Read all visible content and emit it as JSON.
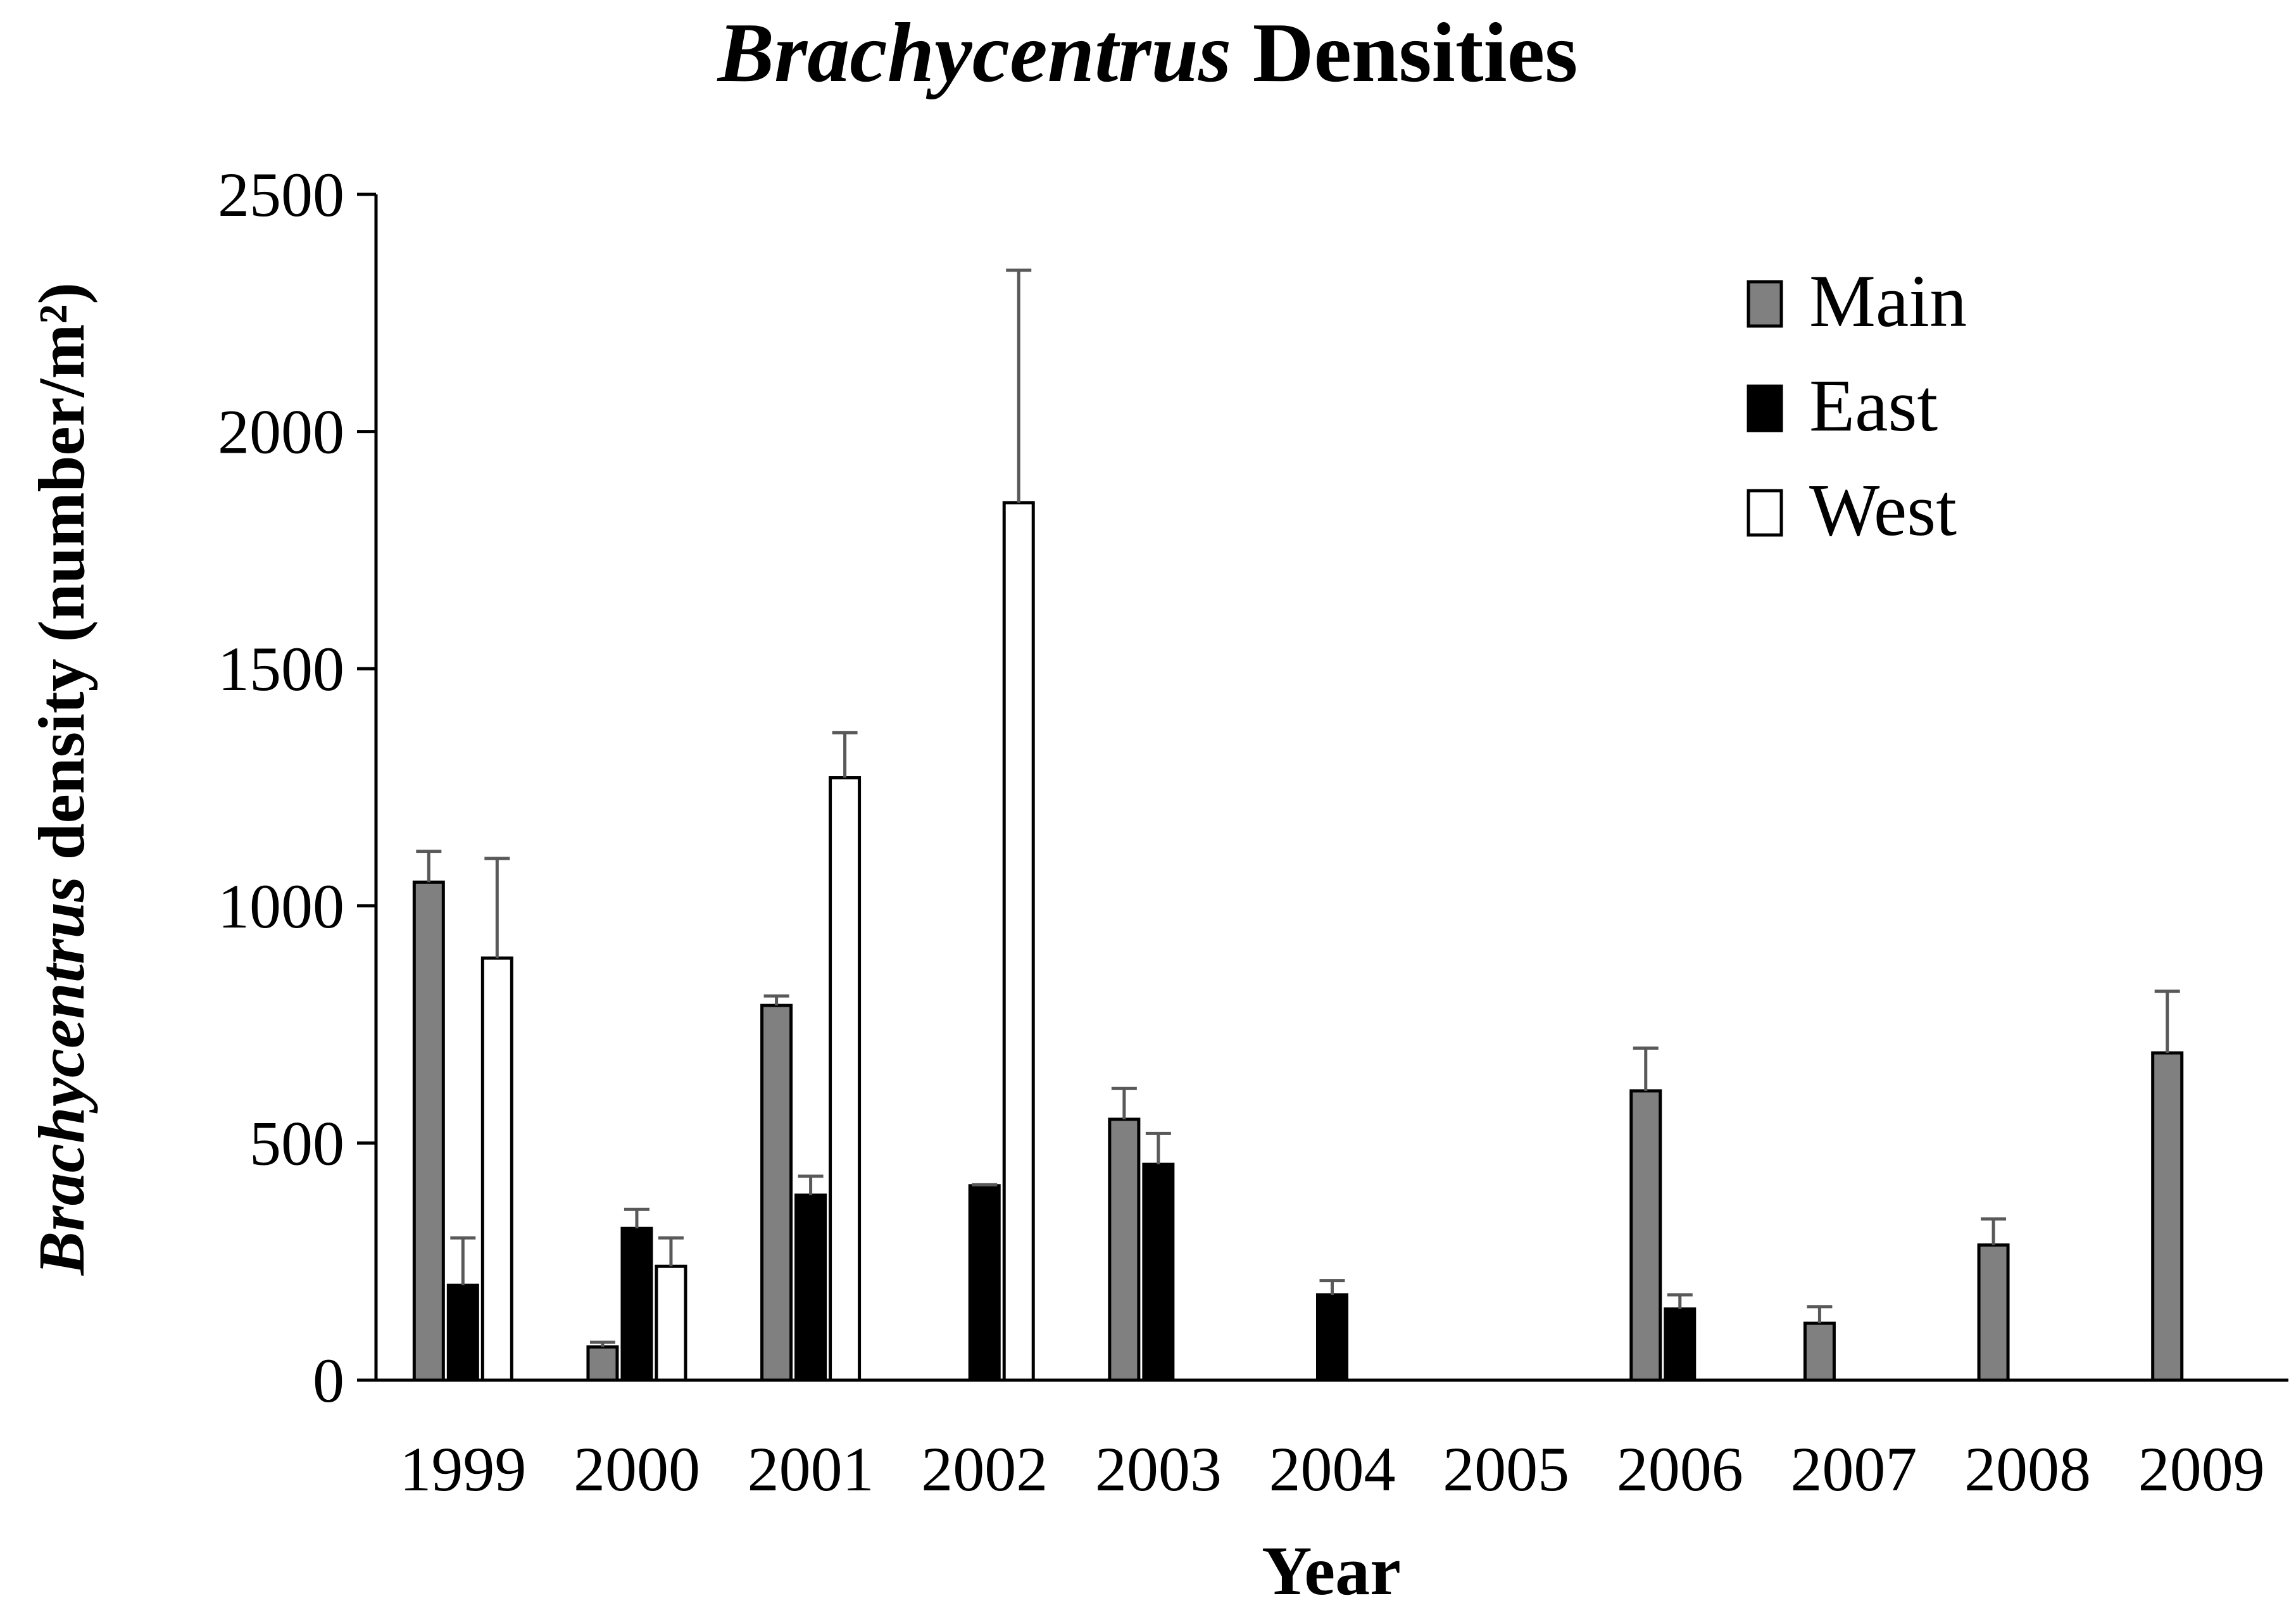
{
  "chart_data": {
    "type": "bar",
    "title_italic": "Brachycentrus",
    "title_rest": " Densities",
    "ylabel_italic": "Brachycentrus",
    "ylabel_rest": " density (number/m²)",
    "xlabel": "Year",
    "ylim": [
      0,
      2500
    ],
    "yticks": [
      "0",
      "500",
      "1000",
      "1500",
      "2000",
      "2500"
    ],
    "categories": [
      "1999",
      "2000",
      "2001",
      "2002",
      "2003",
      "2004",
      "2005",
      "2006",
      "2007",
      "2008",
      "2009"
    ],
    "legend_position": "top-right",
    "series": [
      {
        "name": "Main",
        "color": "#808080",
        "values": [
          1050,
          70,
          790,
          null,
          550,
          null,
          null,
          610,
          120,
          285,
          690
        ],
        "errors": [
          65,
          10,
          20,
          null,
          65,
          null,
          null,
          90,
          35,
          55,
          130
        ]
      },
      {
        "name": "East",
        "color": "#000000",
        "values": [
          200,
          320,
          390,
          410,
          455,
          180,
          null,
          150,
          null,
          null,
          null
        ],
        "errors": [
          100,
          40,
          40,
          2,
          65,
          30,
          null,
          30,
          null,
          null,
          null
        ]
      },
      {
        "name": "West",
        "color": "#ffffff",
        "values": [
          890,
          240,
          1270,
          1850,
          null,
          null,
          null,
          null,
          null,
          null,
          null
        ],
        "errors": [
          210,
          60,
          95,
          490,
          null,
          null,
          null,
          null,
          null,
          null,
          null
        ]
      }
    ]
  }
}
